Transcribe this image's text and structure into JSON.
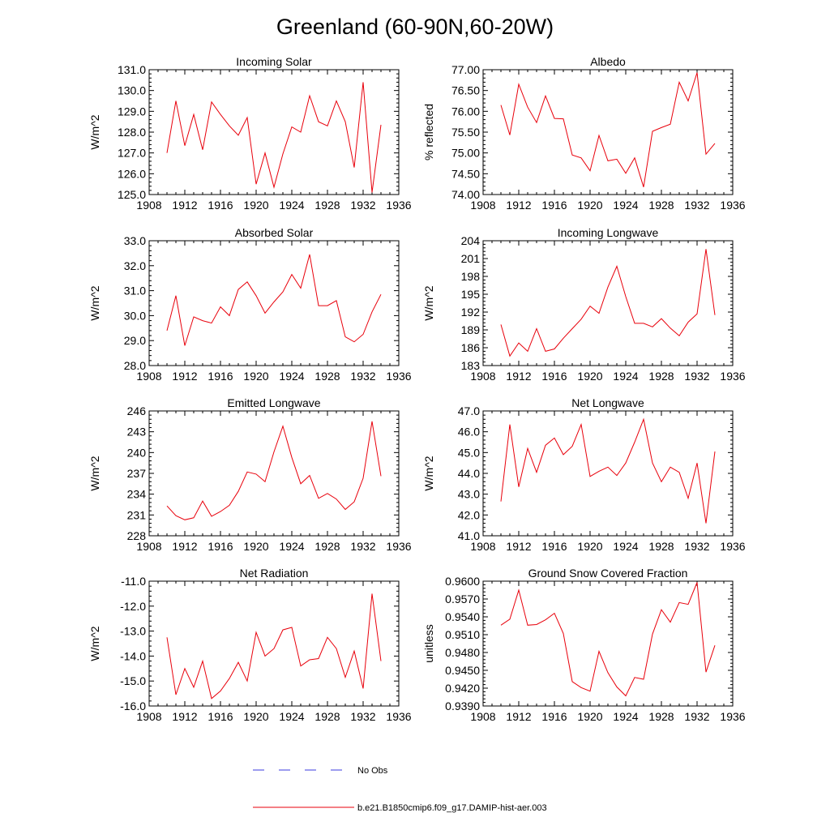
{
  "figure": {
    "title": "Greenland (60-90N,60-20W)"
  },
  "colors": {
    "model": "#e8000b",
    "obs": "#3a3adf",
    "axis": "#000000"
  },
  "legend": {
    "items": [
      {
        "label": "No Obs",
        "style": "dashed",
        "color": "#3a3adf"
      },
      {
        "label": "b.e21.B1850cmip6.f09_g17.DAMIP-hist-aer.003",
        "style": "solid",
        "color": "#e8000b"
      }
    ]
  },
  "chart_data": [
    {
      "type": "line",
      "title": "Incoming Solar",
      "ylabel": "W/m^2",
      "xlim": [
        1908,
        1936
      ],
      "xticks": [
        1908,
        1912,
        1916,
        1920,
        1924,
        1928,
        1932,
        1936
      ],
      "ylim": [
        125.0,
        131.0
      ],
      "yticks": [
        "125.0",
        "126.0",
        "127.0",
        "128.0",
        "129.0",
        "130.0",
        "131.0"
      ],
      "x": [
        1910,
        1911,
        1912,
        1913,
        1914,
        1915,
        1916,
        1917,
        1918,
        1919,
        1920,
        1921,
        1922,
        1923,
        1924,
        1925,
        1926,
        1927,
        1928,
        1929,
        1930,
        1931,
        1932,
        1933,
        1934
      ],
      "y": [
        127.0,
        129.5,
        127.35,
        128.85,
        127.15,
        129.45,
        128.85,
        128.3,
        127.85,
        128.7,
        125.5,
        127.0,
        125.35,
        126.95,
        128.25,
        128.0,
        129.75,
        128.5,
        128.3,
        129.5,
        128.5,
        126.3,
        130.4,
        125.1,
        128.35
      ]
    },
    {
      "type": "line",
      "title": "Albedo",
      "ylabel": "% reflected",
      "xlim": [
        1908,
        1936
      ],
      "xticks": [
        1908,
        1912,
        1916,
        1920,
        1924,
        1928,
        1932,
        1936
      ],
      "ylim": [
        74.0,
        77.0
      ],
      "yticks": [
        "74.00",
        "74.50",
        "75.00",
        "75.50",
        "76.00",
        "76.50",
        "77.00"
      ],
      "x": [
        1910,
        1911,
        1912,
        1913,
        1914,
        1915,
        1916,
        1917,
        1918,
        1919,
        1920,
        1921,
        1922,
        1923,
        1924,
        1925,
        1926,
        1927,
        1928,
        1929,
        1930,
        1931,
        1932,
        1933,
        1934
      ],
      "y": [
        76.15,
        75.43,
        76.65,
        76.1,
        75.73,
        76.37,
        75.83,
        75.82,
        74.95,
        74.88,
        74.57,
        75.42,
        74.81,
        74.85,
        74.51,
        74.88,
        74.18,
        75.52,
        75.61,
        75.69,
        76.7,
        76.25,
        76.93,
        74.97,
        75.23
      ]
    },
    {
      "type": "line",
      "title": "Absorbed Solar",
      "ylabel": "W/m^2",
      "xlim": [
        1908,
        1936
      ],
      "xticks": [
        1908,
        1912,
        1916,
        1920,
        1924,
        1928,
        1932,
        1936
      ],
      "ylim": [
        28.0,
        33.0
      ],
      "yticks": [
        "28.0",
        "29.0",
        "30.0",
        "31.0",
        "32.0",
        "33.0"
      ],
      "x": [
        1910,
        1911,
        1912,
        1913,
        1914,
        1915,
        1916,
        1917,
        1918,
        1919,
        1920,
        1921,
        1922,
        1923,
        1924,
        1925,
        1926,
        1927,
        1928,
        1929,
        1930,
        1931,
        1932,
        1933,
        1934
      ],
      "y": [
        29.4,
        30.8,
        28.8,
        29.95,
        29.8,
        29.7,
        30.35,
        30.0,
        31.05,
        31.35,
        30.8,
        30.1,
        30.55,
        30.95,
        31.65,
        31.1,
        32.45,
        30.4,
        30.4,
        30.6,
        29.15,
        28.95,
        29.25,
        30.15,
        30.85
      ]
    },
    {
      "type": "line",
      "title": "Incoming Longwave",
      "ylabel": "W/m^2",
      "xlim": [
        1908,
        1936
      ],
      "xticks": [
        1908,
        1912,
        1916,
        1920,
        1924,
        1928,
        1932,
        1936
      ],
      "ylim": [
        183,
        204
      ],
      "yticks": [
        "183",
        "186",
        "189",
        "192",
        "195",
        "198",
        "201",
        "204"
      ],
      "x": [
        1910,
        1911,
        1912,
        1913,
        1914,
        1915,
        1916,
        1917,
        1918,
        1919,
        1920,
        1921,
        1922,
        1923,
        1924,
        1925,
        1926,
        1927,
        1928,
        1929,
        1930,
        1931,
        1932,
        1933,
        1934
      ],
      "y": [
        189.9,
        184.6,
        186.8,
        185.4,
        189.2,
        185.4,
        185.8,
        187.6,
        189.2,
        190.8,
        193.0,
        191.8,
        196.2,
        199.7,
        194.6,
        190.1,
        190.1,
        189.5,
        190.9,
        189.3,
        188.0,
        190.3,
        191.7,
        202.6,
        191.5
      ]
    },
    {
      "type": "line",
      "title": "Emitted Longwave",
      "ylabel": "W/m^2",
      "xlim": [
        1908,
        1936
      ],
      "xticks": [
        1908,
        1912,
        1916,
        1920,
        1924,
        1928,
        1932,
        1936
      ],
      "ylim": [
        228,
        246
      ],
      "yticks": [
        "228",
        "231",
        "234",
        "237",
        "240",
        "243",
        "246"
      ],
      "x": [
        1910,
        1911,
        1912,
        1913,
        1914,
        1915,
        1916,
        1917,
        1918,
        1919,
        1920,
        1921,
        1922,
        1923,
        1924,
        1925,
        1926,
        1927,
        1928,
        1929,
        1930,
        1931,
        1932,
        1933,
        1934
      ],
      "y": [
        232.3,
        230.9,
        230.3,
        230.6,
        233.0,
        230.8,
        231.5,
        232.4,
        234.4,
        237.2,
        236.9,
        235.8,
        240.1,
        243.8,
        239.3,
        235.5,
        236.7,
        233.4,
        234.1,
        233.3,
        231.8,
        232.9,
        236.3,
        244.5,
        236.6
      ]
    },
    {
      "type": "line",
      "title": "Net Longwave",
      "ylabel": "W/m^2",
      "xlim": [
        1908,
        1936
      ],
      "xticks": [
        1908,
        1912,
        1916,
        1920,
        1924,
        1928,
        1932,
        1936
      ],
      "ylim": [
        41.0,
        47.0
      ],
      "yticks": [
        "41.0",
        "42.0",
        "43.0",
        "44.0",
        "45.0",
        "46.0",
        "47.0"
      ],
      "x": [
        1910,
        1911,
        1912,
        1913,
        1914,
        1915,
        1916,
        1917,
        1918,
        1919,
        1920,
        1921,
        1922,
        1923,
        1924,
        1925,
        1926,
        1927,
        1928,
        1929,
        1930,
        1931,
        1932,
        1933,
        1934
      ],
      "y": [
        42.65,
        46.35,
        43.35,
        45.2,
        44.05,
        45.35,
        45.7,
        44.9,
        45.3,
        46.35,
        43.85,
        44.1,
        44.3,
        43.9,
        44.5,
        45.5,
        46.6,
        44.5,
        43.6,
        44.3,
        44.05,
        42.8,
        44.5,
        41.6,
        45.05
      ]
    },
    {
      "type": "line",
      "title": "Net Radiation",
      "ylabel": "W/m^2",
      "xlim": [
        1908,
        1936
      ],
      "xticks": [
        1908,
        1912,
        1916,
        1920,
        1924,
        1928,
        1932,
        1936
      ],
      "ylim": [
        -16.0,
        -11.0
      ],
      "yticks": [
        "-16.0",
        "-15.0",
        "-14.0",
        "-13.0",
        "-12.0",
        "-11.0"
      ],
      "x": [
        1910,
        1911,
        1912,
        1913,
        1914,
        1915,
        1916,
        1917,
        1918,
        1919,
        1920,
        1921,
        1922,
        1923,
        1924,
        1925,
        1926,
        1927,
        1928,
        1929,
        1930,
        1931,
        1932,
        1933,
        1934
      ],
      "y": [
        -13.25,
        -15.55,
        -14.5,
        -15.25,
        -14.2,
        -15.7,
        -15.4,
        -14.9,
        -14.25,
        -15.0,
        -13.05,
        -14.0,
        -13.7,
        -12.95,
        -12.85,
        -14.4,
        -14.15,
        -14.1,
        -13.25,
        -13.7,
        -14.85,
        -13.8,
        -15.3,
        -11.5,
        -14.2
      ]
    },
    {
      "type": "line",
      "title": "Ground Snow Covered Fraction",
      "ylabel": "unitless",
      "xlim": [
        1908,
        1936
      ],
      "xticks": [
        1908,
        1912,
        1916,
        1920,
        1924,
        1928,
        1932,
        1936
      ],
      "ylim": [
        0.939,
        0.96
      ],
      "yticks": [
        "0.9390",
        "0.9420",
        "0.9450",
        "0.9480",
        "0.9510",
        "0.9540",
        "0.9570",
        "0.9600"
      ],
      "x": [
        1910,
        1911,
        1912,
        1913,
        1914,
        1915,
        1916,
        1917,
        1918,
        1919,
        1920,
        1921,
        1922,
        1923,
        1924,
        1925,
        1926,
        1927,
        1928,
        1929,
        1930,
        1931,
        1932,
        1933,
        1934
      ],
      "y": [
        0.9526,
        0.9536,
        0.9585,
        0.9526,
        0.9527,
        0.9535,
        0.9546,
        0.9512,
        0.9431,
        0.9421,
        0.9415,
        0.9482,
        0.9446,
        0.9422,
        0.9407,
        0.9438,
        0.9435,
        0.9511,
        0.9552,
        0.9531,
        0.9564,
        0.9561,
        0.9598,
        0.9447,
        0.9492
      ]
    }
  ]
}
